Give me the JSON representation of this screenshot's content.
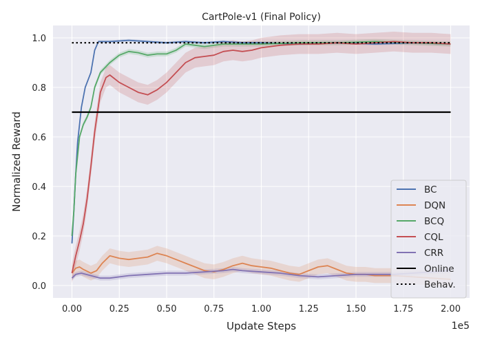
{
  "chart_data": {
    "type": "line",
    "title": "CartPole-v1 (Final Policy)",
    "xlabel": "Update Steps",
    "ylabel": "Normalized Reward",
    "x_offset_label": "1e5",
    "xlim": [
      -0.1,
      2.1
    ],
    "ylim": [
      -0.05,
      1.05
    ],
    "x_ticks": [
      0.0,
      0.25,
      0.5,
      0.75,
      1.0,
      1.25,
      1.5,
      1.75,
      2.0
    ],
    "x_tick_labels": [
      "0.00",
      "0.25",
      "0.50",
      "0.75",
      "1.00",
      "1.25",
      "1.50",
      "1.75",
      "2.00"
    ],
    "y_ticks": [
      0.0,
      0.2,
      0.4,
      0.6,
      0.8,
      1.0
    ],
    "y_tick_labels": [
      "0.0",
      "0.2",
      "0.4",
      "0.6",
      "0.8",
      "1.0"
    ],
    "grid": true,
    "legend_position": "bottom-right",
    "background_color": "#eaeaf2",
    "series": [
      {
        "name": "BC",
        "color": "#4c72b0",
        "style": "solid",
        "x": [
          0,
          0.01,
          0.02,
          0.03,
          0.05,
          0.07,
          0.1,
          0.12,
          0.14,
          0.2,
          0.3,
          0.4,
          0.5,
          0.6,
          0.7,
          0.8,
          0.9,
          1.0,
          1.2,
          1.4,
          1.6,
          1.8,
          2.0
        ],
        "y": [
          0.17,
          0.3,
          0.45,
          0.58,
          0.72,
          0.8,
          0.86,
          0.95,
          0.985,
          0.985,
          0.99,
          0.985,
          0.98,
          0.985,
          0.98,
          0.985,
          0.98,
          0.98,
          0.975,
          0.98,
          0.975,
          0.98,
          0.975
        ],
        "band": 0.005
      },
      {
        "name": "DQN",
        "color": "#dd8452",
        "style": "solid",
        "x": [
          0,
          0.02,
          0.04,
          0.06,
          0.1,
          0.13,
          0.16,
          0.2,
          0.25,
          0.3,
          0.35,
          0.4,
          0.45,
          0.5,
          0.55,
          0.6,
          0.65,
          0.7,
          0.75,
          0.8,
          0.85,
          0.9,
          0.95,
          1.0,
          1.05,
          1.1,
          1.15,
          1.2,
          1.25,
          1.3,
          1.35,
          1.4,
          1.45,
          1.5,
          1.55,
          1.6,
          1.7,
          1.8,
          1.9,
          2.0
        ],
        "y": [
          0.05,
          0.07,
          0.075,
          0.065,
          0.05,
          0.06,
          0.09,
          0.12,
          0.11,
          0.105,
          0.11,
          0.115,
          0.13,
          0.12,
          0.105,
          0.09,
          0.075,
          0.06,
          0.055,
          0.065,
          0.08,
          0.09,
          0.08,
          0.075,
          0.07,
          0.06,
          0.05,
          0.045,
          0.06,
          0.075,
          0.08,
          0.065,
          0.05,
          0.045,
          0.045,
          0.04,
          0.04,
          0.035,
          0.03,
          0.025
        ],
        "band": 0.03
      },
      {
        "name": "BCQ",
        "color": "#55a868",
        "style": "solid",
        "x": [
          0,
          0.01,
          0.02,
          0.04,
          0.06,
          0.08,
          0.1,
          0.12,
          0.15,
          0.2,
          0.25,
          0.3,
          0.35,
          0.4,
          0.45,
          0.5,
          0.55,
          0.6,
          0.65,
          0.7,
          0.8,
          0.9,
          1.0,
          1.2,
          1.4,
          1.6,
          1.8,
          2.0
        ],
        "y": [
          0.2,
          0.3,
          0.45,
          0.6,
          0.65,
          0.68,
          0.72,
          0.8,
          0.86,
          0.9,
          0.93,
          0.945,
          0.94,
          0.93,
          0.935,
          0.935,
          0.95,
          0.975,
          0.97,
          0.965,
          0.975,
          0.975,
          0.975,
          0.98,
          0.98,
          0.985,
          0.98,
          0.975
        ],
        "band": 0.01
      },
      {
        "name": "CQL",
        "color": "#c44e52",
        "style": "solid",
        "x": [
          0,
          0.02,
          0.04,
          0.06,
          0.08,
          0.1,
          0.12,
          0.15,
          0.18,
          0.2,
          0.25,
          0.3,
          0.35,
          0.4,
          0.45,
          0.5,
          0.55,
          0.6,
          0.65,
          0.7,
          0.75,
          0.8,
          0.85,
          0.9,
          0.95,
          1.0,
          1.05,
          1.1,
          1.2,
          1.3,
          1.4,
          1.5,
          1.6,
          1.7,
          1.8,
          1.9,
          2.0
        ],
        "y": [
          0.05,
          0.12,
          0.18,
          0.25,
          0.35,
          0.48,
          0.62,
          0.78,
          0.84,
          0.85,
          0.82,
          0.8,
          0.78,
          0.77,
          0.79,
          0.82,
          0.86,
          0.9,
          0.92,
          0.925,
          0.93,
          0.945,
          0.95,
          0.945,
          0.95,
          0.96,
          0.965,
          0.97,
          0.975,
          0.975,
          0.98,
          0.975,
          0.98,
          0.985,
          0.98,
          0.98,
          0.975
        ],
        "band": 0.04
      },
      {
        "name": "CRR",
        "color": "#8172b3",
        "style": "solid",
        "x": [
          0,
          0.02,
          0.05,
          0.1,
          0.15,
          0.2,
          0.3,
          0.4,
          0.5,
          0.6,
          0.7,
          0.8,
          0.85,
          0.9,
          1.0,
          1.1,
          1.2,
          1.3,
          1.4,
          1.5,
          1.6,
          1.7,
          1.8,
          1.9,
          2.0
        ],
        "y": [
          0.03,
          0.045,
          0.05,
          0.04,
          0.03,
          0.03,
          0.04,
          0.045,
          0.05,
          0.05,
          0.055,
          0.06,
          0.065,
          0.06,
          0.055,
          0.05,
          0.04,
          0.035,
          0.04,
          0.045,
          0.045,
          0.045,
          0.05,
          0.055,
          0.06
        ],
        "band": 0.01
      },
      {
        "name": "Online",
        "color": "#000000",
        "style": "solid",
        "x": [
          0,
          2.0
        ],
        "y": [
          0.7,
          0.7
        ],
        "band": 0
      },
      {
        "name": "Behav.",
        "color": "#000000",
        "style": "dotted",
        "x": [
          0,
          2.0
        ],
        "y": [
          0.98,
          0.98
        ],
        "band": 0
      }
    ]
  }
}
